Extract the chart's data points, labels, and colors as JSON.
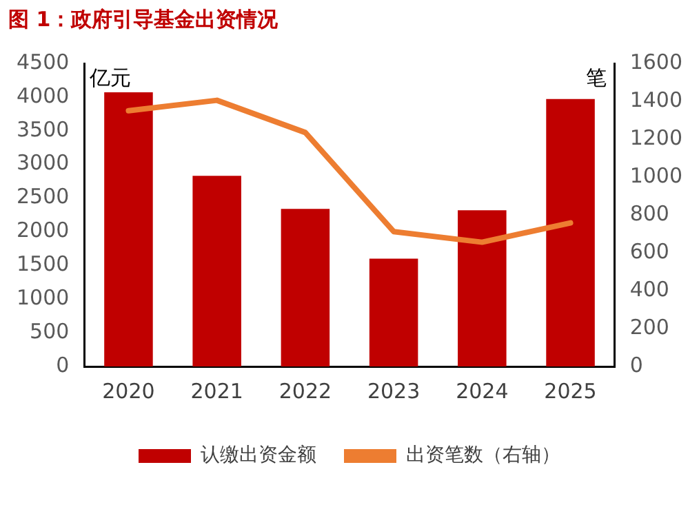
{
  "chart_data": {
    "type": "bar",
    "title": "图 1：政府引导基金出资情况",
    "categories": [
      "2020",
      "2021",
      "2022",
      "2023",
      "2024",
      "2025"
    ],
    "series": [
      {
        "name": "认缴出资金额",
        "color": "#c00000",
        "values": [
          4070,
          2830,
          2340,
          1600,
          2320,
          3970
        ]
      },
      {
        "name": "出资笔数（右轴）",
        "type": "line",
        "axis": "y2",
        "color": "#ed7d31",
        "values": [
          1350,
          1405,
          1235,
          712,
          656,
          758
        ]
      }
    ],
    "ylabel": "亿元",
    "y2label": "笔",
    "ylim": [
      0,
      4500
    ],
    "yticks": [
      0,
      500,
      1000,
      1500,
      2000,
      2500,
      3000,
      3500,
      4000,
      4500
    ],
    "y2lim": [
      0,
      1600
    ],
    "y2ticks": [
      0,
      200,
      400,
      600,
      800,
      1000,
      1200,
      1400,
      1600
    ],
    "grid": false,
    "legend": "bottom",
    "marker": "none",
    "line_style": "solid"
  }
}
